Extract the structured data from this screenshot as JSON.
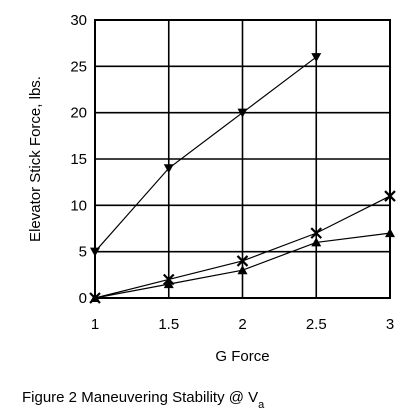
{
  "chart_data": {
    "type": "line",
    "xlabel": "G Force",
    "ylabel": "Elevator Stick Force, lbs.",
    "x_ticks": [
      "1",
      "1.5",
      "2",
      "2.5",
      "3"
    ],
    "y_ticks": [
      "0",
      "5",
      "10",
      "15",
      "20",
      "25",
      "30"
    ],
    "xlim": [
      1,
      3
    ],
    "ylim": [
      0,
      30
    ],
    "grid": true,
    "series": [
      {
        "marker": "triangle-down",
        "x": [
          1,
          1.5,
          2,
          2.5
        ],
        "y": [
          5,
          14,
          20,
          26
        ]
      },
      {
        "marker": "x",
        "x": [
          1,
          1.5,
          2,
          2.5,
          3
        ],
        "y": [
          0,
          2,
          4,
          7,
          11
        ]
      },
      {
        "marker": "triangle-up",
        "x": [
          1,
          1.5,
          2,
          2.5,
          3
        ],
        "y": [
          0,
          1.5,
          3,
          6,
          7
        ]
      }
    ]
  },
  "caption": {
    "text": "Figure 2  Maneuvering Stability @ V",
    "subscript": "a"
  }
}
